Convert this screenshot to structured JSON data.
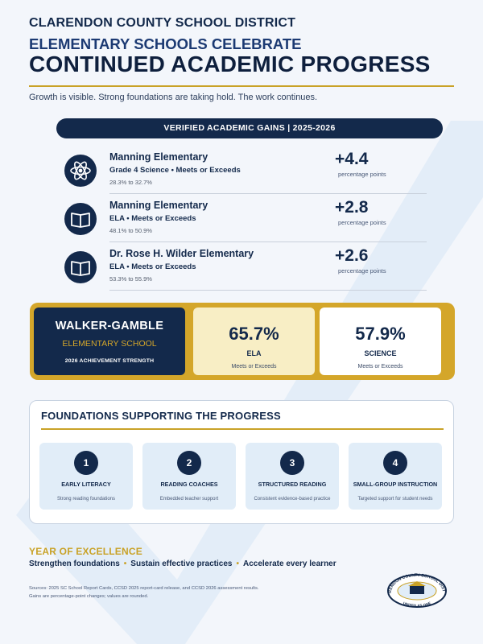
{
  "header": {
    "district": "CLARENDON COUNTY SCHOOL DISTRICT",
    "headline_line1": "ELEMENTARY SCHOOLS CELEBRATE",
    "headline_line2": "CONTINUED ACADEMIC PROGRESS",
    "tagline": "Growth is visible. Strong foundations are taking hold. The work continues."
  },
  "banner": {
    "text": "VERIFIED ACADEMIC GAINS  |  2025-2026"
  },
  "gains": [
    {
      "icon": "atom-icon",
      "school": "Manning Elementary",
      "metric": "Grade 4 Science • Meets or Exceeds",
      "range": "28.3% to 32.7%",
      "delta": "+4.4",
      "delta_label": "percentage points"
    },
    {
      "icon": "book-icon",
      "school": "Manning Elementary",
      "metric": "ELA • Meets or Exceeds",
      "range": "48.1% to 50.9%",
      "delta": "+2.8",
      "delta_label": "percentage points"
    },
    {
      "icon": "book-icon",
      "school": "Dr. Rose H. Wilder Elementary",
      "metric": "ELA • Meets or Exceeds",
      "range": "53.3% to 55.9%",
      "delta": "+2.6",
      "delta_label": "percentage points"
    }
  ],
  "walker_gamble": {
    "name": "WALKER-GAMBLE",
    "subtitle": "ELEMENTARY SCHOOL",
    "strength": "2026 ACHIEVEMENT STRENGTH",
    "ela": {
      "value": "65.7%",
      "subject": "ELA",
      "note": "Meets or Exceeds"
    },
    "science": {
      "value": "57.9%",
      "subject": "SCIENCE",
      "note": "Meets or Exceeds"
    }
  },
  "foundations": {
    "title": "FOUNDATIONS SUPPORTING THE PROGRESS",
    "cards": [
      {
        "num": "1",
        "caption": "EARLY LITERACY",
        "desc": "Strong reading foundations"
      },
      {
        "num": "2",
        "caption": "READING COACHES",
        "desc": "Embedded teacher support"
      },
      {
        "num": "3",
        "caption": "STRUCTURED READING",
        "desc": "Consistent evidence-based practice"
      },
      {
        "num": "4",
        "caption": "SMALL-GROUP INSTRUCTION",
        "desc": "Targeted support for student needs"
      }
    ]
  },
  "year": {
    "title": "YEAR OF EXCELLENCE",
    "items": [
      "Strengthen foundations",
      "Sustain effective practices",
      "Accelerate every learner"
    ]
  },
  "sources": {
    "line1": "Sources: 2025 SC School Report Cards, CCSD 2025 report-card release, and CCSD 2026 assessment results.",
    "line2": "Gains are percentage-point changes; values are rounded."
  },
  "seal": {
    "text_top": "CLARENDON COUNTY SCHOOL DISTRICT",
    "text_bottom": "UNITED AS ONE"
  },
  "colors": {
    "navy": "#13294b",
    "gold": "#c9a227",
    "light_blue": "#e1edf8",
    "cream": "#f8eec5"
  }
}
